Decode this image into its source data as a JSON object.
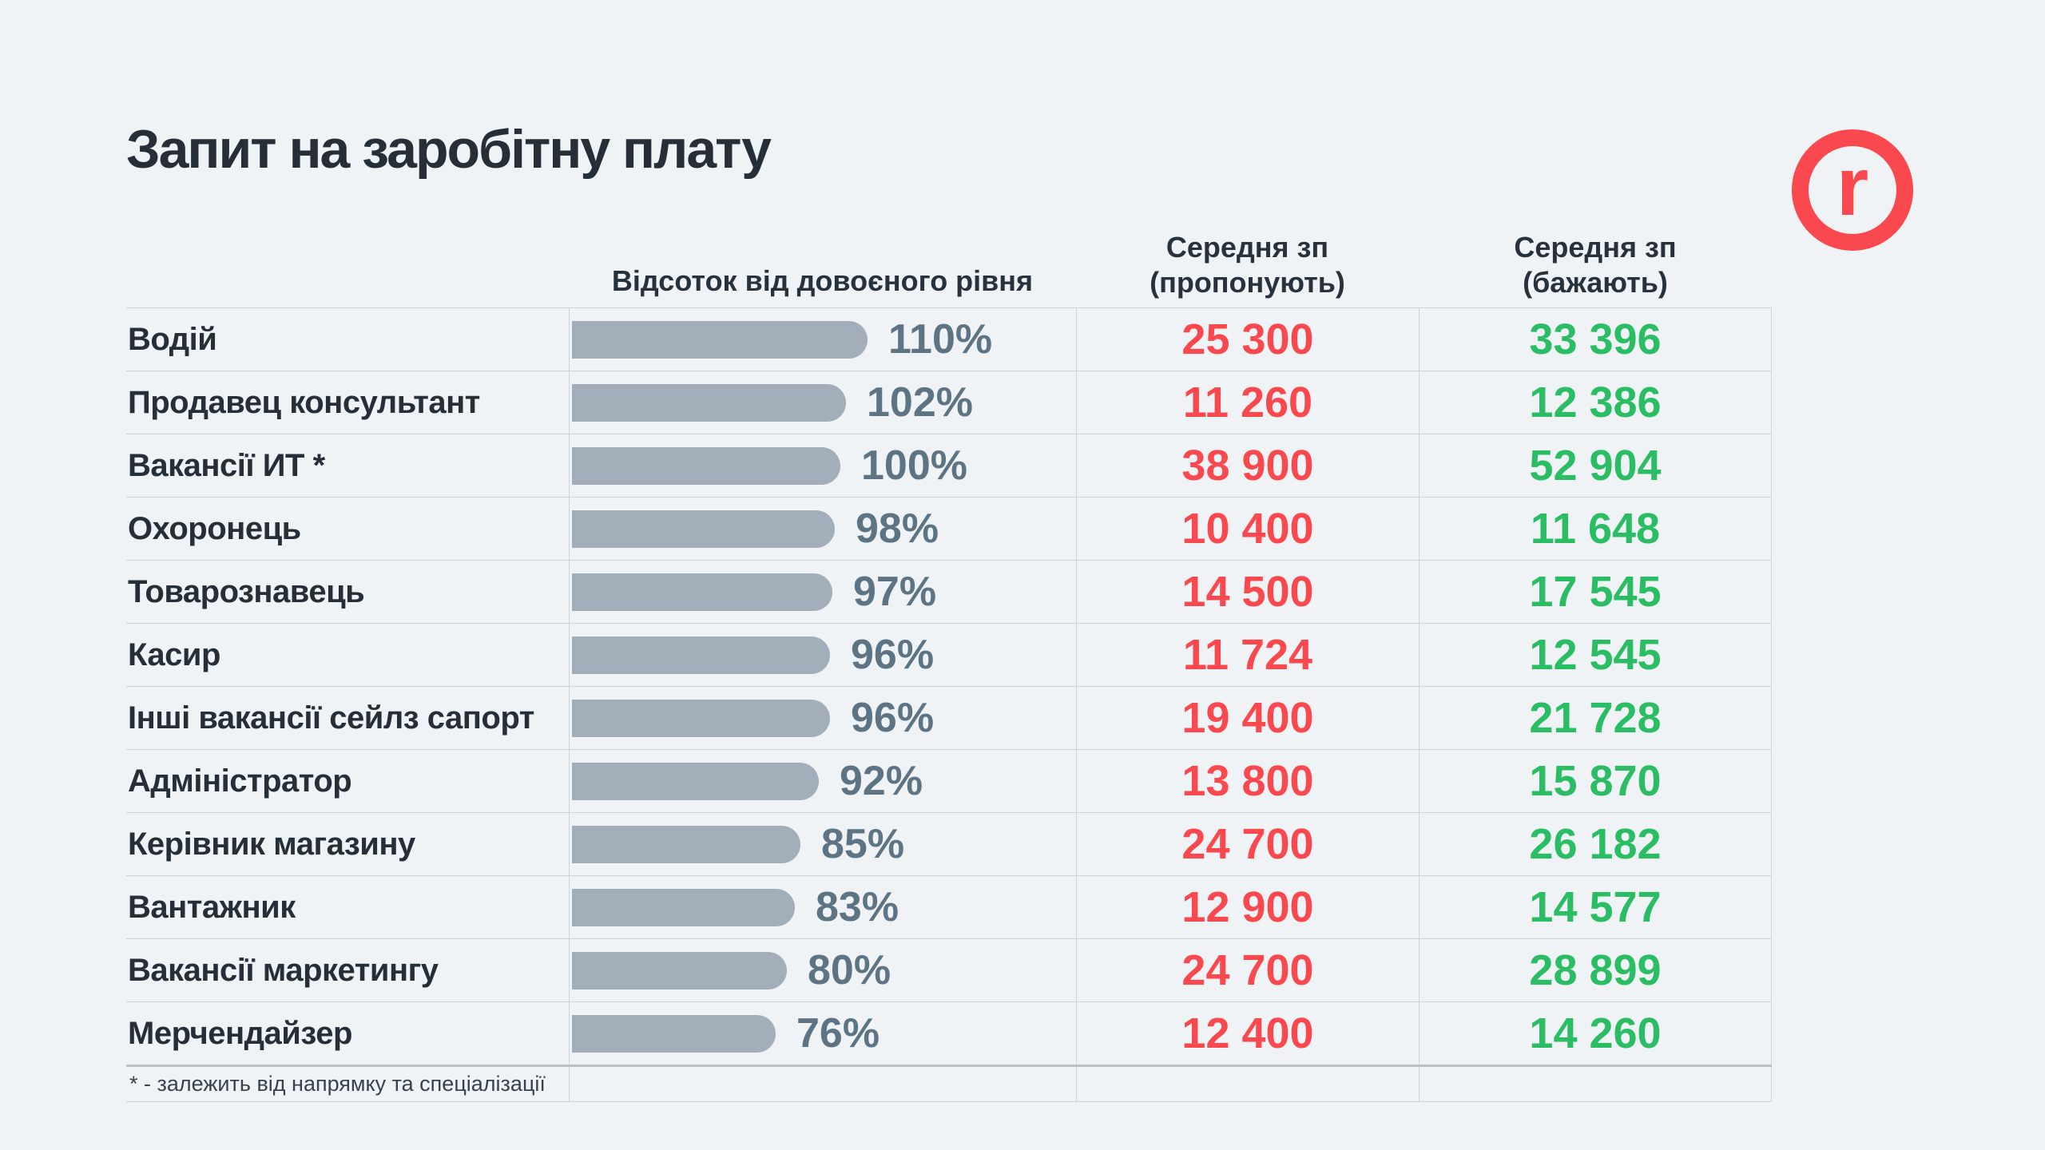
{
  "page": {
    "title": "Запит на заробітну плату"
  },
  "logo": {
    "letter": "r"
  },
  "table": {
    "headers": {
      "percent": "Відсоток від  довоєного рівня",
      "offered": "Середня зп\n(пропонують)",
      "desired": "Середня зп\n(бажають)"
    },
    "rows": [
      {
        "label": "Водій",
        "percent": 110,
        "percent_label": "110%",
        "offered": "25 300",
        "desired": "33 396"
      },
      {
        "label": "Продавец консультант",
        "percent": 102,
        "percent_label": "102%",
        "offered": "11 260",
        "desired": "12 386"
      },
      {
        "label": "Вакансії ИТ *",
        "percent": 100,
        "percent_label": "100%",
        "offered": "38 900",
        "desired": "52 904"
      },
      {
        "label": "Охоронець",
        "percent": 98,
        "percent_label": "98%",
        "offered": "10 400",
        "desired": "11 648"
      },
      {
        "label": "Товарознавець",
        "percent": 97,
        "percent_label": "97%",
        "offered": "14 500",
        "desired": "17 545"
      },
      {
        "label": "Касир",
        "percent": 96,
        "percent_label": "96%",
        "offered": "11 724",
        "desired": "12 545"
      },
      {
        "label": "Інші вакансії сейлз сапорт",
        "percent": 96,
        "percent_label": "96%",
        "offered": "19 400",
        "desired": "21 728"
      },
      {
        "label": "Адміністратор",
        "percent": 92,
        "percent_label": "92%",
        "offered": "13 800",
        "desired": "15 870"
      },
      {
        "label": "Керівник магазину",
        "percent": 85,
        "percent_label": "85%",
        "offered": "24 700",
        "desired": "26 182"
      },
      {
        "label": "Вантажник",
        "percent": 83,
        "percent_label": "83%",
        "offered": "12 900",
        "desired": "14 577"
      },
      {
        "label": "Вакансії маркетингу",
        "percent": 80,
        "percent_label": "80%",
        "offered": "24 700",
        "desired": "28 899"
      },
      {
        "label": "Мерчендайзер",
        "percent": 76,
        "percent_label": "76%",
        "offered": "12 400",
        "desired": "14 260"
      }
    ],
    "footnote": "* - залежить від напрямку та спеціалізації"
  },
  "colors": {
    "background": "#eff3f6",
    "title_text": "#262f38",
    "bar": "#a2aeba",
    "percent_text": "#5d7484",
    "offered_text": "#f9494f",
    "desired_text": "#2abd63",
    "border": "#cdd4da",
    "logo_red": "#f9484e"
  },
  "chart_data": {
    "type": "bar",
    "orientation": "horizontal",
    "title": "Запит на заробітну плату",
    "categories": [
      "Водій",
      "Продавец консультант",
      "Вакансії ИТ *",
      "Охоронець",
      "Товарознавець",
      "Касир",
      "Інші вакансії сейлз сапорт",
      "Адміністратор",
      "Керівник магазину",
      "Вантажник",
      "Вакансії маркетингу",
      "Мерчендайзер"
    ],
    "series": [
      {
        "name": "Відсоток від довоєного рівня (%)",
        "values": [
          110,
          102,
          100,
          98,
          97,
          96,
          96,
          92,
          85,
          83,
          80,
          76
        ]
      },
      {
        "name": "Середня зп (пропонують)",
        "values": [
          25300,
          11260,
          38900,
          10400,
          14500,
          11724,
          19400,
          13800,
          24700,
          12900,
          24700,
          12400
        ]
      },
      {
        "name": "Середня зп (бажають)",
        "values": [
          33396,
          12386,
          52904,
          11648,
          17545,
          12545,
          21728,
          15870,
          26182,
          14577,
          28899,
          14260
        ]
      }
    ],
    "xlim": [
      0,
      110
    ],
    "grid": false,
    "legend_position": "column-headers",
    "annotations": [
      "* - залежить від напрямку та спеціалізації"
    ]
  }
}
